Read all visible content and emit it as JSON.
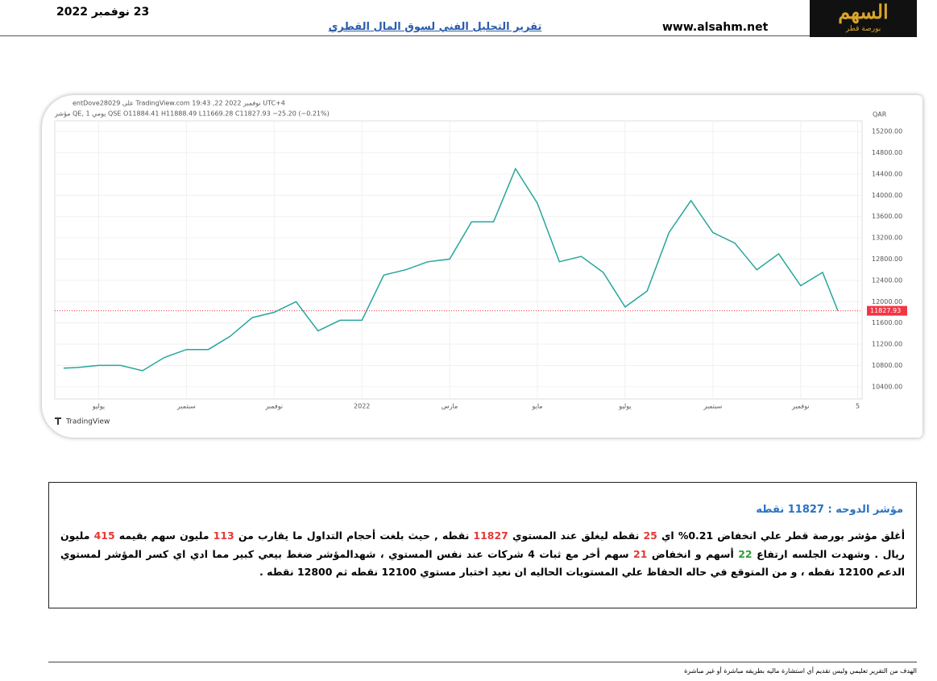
{
  "header": {
    "date": "23 نوفمبر 2022",
    "title": "تقرير التحليل الفني لسوق المال القطري",
    "site": "www.alsahm.net",
    "logo": "السهم",
    "logo_sub": "بورصة قطر"
  },
  "chart_data": {
    "type": "line",
    "info": "entDove28029 على TradingView.com 19:43 ,22 نوفمبر 2022 UTC+4",
    "legend": "مؤشر QE, يومي 1 QSE O11884.41 H11888.49 L11669.28 C11827.93 −25.20 (−0.21%)",
    "currency": "QAR",
    "brand": "TradingView",
    "color": "#26a69a",
    "last_color": "#f23645",
    "x": [
      0.2,
      0.5,
      1,
      1.5,
      2,
      2.5,
      3,
      3.5,
      4,
      4.5,
      5,
      5.5,
      6,
      6.5,
      7,
      7.5,
      8,
      8.5,
      9,
      9.5,
      10,
      10.5,
      11,
      11.5,
      12,
      12.5,
      13,
      13.5,
      14,
      14.5,
      15,
      15.5,
      16,
      16.5,
      17,
      17.5,
      17.85
    ],
    "values": [
      10750,
      10760,
      10800,
      10800,
      10700,
      10950,
      11100,
      11100,
      11350,
      11700,
      11800,
      12000,
      11450,
      11650,
      11650,
      12500,
      12600,
      12750,
      12800,
      13500,
      13500,
      14500,
      13850,
      12750,
      12850,
      12550,
      11900,
      12200,
      13300,
      13900,
      13300,
      13100,
      12600,
      12900,
      12300,
      12550,
      11827.93
    ],
    "xlim": [
      0,
      18.4
    ],
    "xticks": [
      {
        "value": 1,
        "label": "يوليو"
      },
      {
        "value": 3,
        "label": "سبتمبر"
      },
      {
        "value": 5,
        "label": "نوفمبر"
      },
      {
        "value": 7,
        "label": "2022"
      },
      {
        "value": 9,
        "label": "مارس"
      },
      {
        "value": 11,
        "label": "مايو"
      },
      {
        "value": 13,
        "label": "يوليو"
      },
      {
        "value": 15,
        "label": "سبتمبر"
      },
      {
        "value": 17,
        "label": "نوفمبر"
      },
      {
        "value": 18.3,
        "label": "5"
      }
    ],
    "ylim": [
      10170,
      15400
    ],
    "yticks": [
      {
        "value": 10400,
        "label": "10400.00"
      },
      {
        "value": 10800,
        "label": "10800.00"
      },
      {
        "value": 11200,
        "label": "11200.00"
      },
      {
        "value": 11600,
        "label": "11600.00"
      },
      {
        "value": 12000,
        "label": "12000.00"
      },
      {
        "value": 12400,
        "label": "12400.00"
      },
      {
        "value": 12800,
        "label": "12800.00"
      },
      {
        "value": 13200,
        "label": "13200.00"
      },
      {
        "value": 13600,
        "label": "13600.00"
      },
      {
        "value": 14000,
        "label": "14000.00"
      },
      {
        "value": 14400,
        "label": "14400.00"
      },
      {
        "value": 14800,
        "label": "14800.00"
      },
      {
        "value": 15200,
        "label": "15200.00"
      }
    ],
    "grid": true
  },
  "report": {
    "heading": "مؤشر الدوحه : 11827 نقطه",
    "runs": [
      {
        "text": "أغلق مؤشر بورصة قطر علي  انخفاض  0.21% اي "
      },
      {
        "text": "25",
        "color": "#e53935"
      },
      {
        "text": "  نقطه  ليغلق عند المستوي  "
      },
      {
        "text": "11827",
        "color": "#e53935"
      },
      {
        "text": " نقطه , حيث بلغت أحجام التداول ما يقارب من "
      },
      {
        "text": "113",
        "color": "#e53935"
      },
      {
        "text": " مليون سهم بقيمه "
      },
      {
        "text": "415",
        "color": "#e53935"
      },
      {
        "text": " مليون ريال . وشهدت الجلسه ارتفاع "
      },
      {
        "text": "22",
        "color": "#2e9e3a"
      },
      {
        "text": " أسهم  و انخفاض  "
      },
      {
        "text": "21",
        "color": "#e53935"
      },
      {
        "text": " سهم أخر مع ثبات 4 شركات عند نفس المستوي ، شهدالمؤشر ضغط بيعي كبير مما ادي اي كسر المؤشر لمستوي الدعم 12100 نقطه ، و من المتوقع في حاله الحفاظ علي المستويات الحاليه ان نعيد اختبار مستوي 12100 نقطه ثم 12800 نقطه ."
      }
    ]
  },
  "footer": {
    "note": "الهدف من التقرير تعليمي وليس تقديم أي استشارة ماليه بطريقه مباشرة أو غير مباشرة"
  }
}
